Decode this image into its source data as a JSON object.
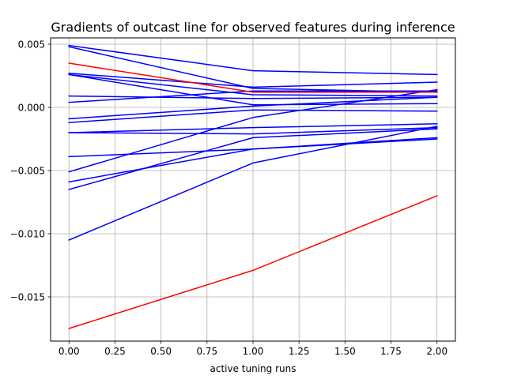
{
  "chart_data": {
    "type": "line",
    "title": "Gradients of outcast line for observed features during inference",
    "xlabel": "active tuning runs",
    "ylabel": "",
    "xlim": [
      -0.1,
      2.1
    ],
    "ylim": [
      -0.0185,
      0.0055
    ],
    "x": [
      0,
      1,
      2
    ],
    "xticks": [
      0.0,
      0.25,
      0.5,
      0.75,
      1.0,
      1.25,
      1.5,
      1.75,
      2.0
    ],
    "xtick_labels": [
      "0.00",
      "0.25",
      "0.50",
      "0.75",
      "1.00",
      "1.25",
      "1.50",
      "1.75",
      "2.00"
    ],
    "yticks": [
      0.005,
      0.0,
      -0.005,
      -0.01,
      -0.015
    ],
    "ytick_labels": [
      "0.005",
      "0.000",
      "−0.005",
      "−0.010",
      "−0.015"
    ],
    "grid": true,
    "legend": "none",
    "colors": {
      "blue": "#0000ff",
      "red": "#ff0000"
    },
    "series": [
      {
        "color": "#0000ff",
        "values": [
          0.0049,
          0.0029,
          0.0026
        ]
      },
      {
        "color": "#0000ff",
        "values": [
          0.0048,
          0.0015,
          0.0012
        ]
      },
      {
        "color": "#0000ff",
        "values": [
          0.0027,
          0.0016,
          0.002
        ]
      },
      {
        "color": "#0000ff",
        "values": [
          0.0026,
          0.001,
          0.0009
        ]
      },
      {
        "color": "#0000ff",
        "values": [
          0.0026,
          0.0002,
          0.0003
        ]
      },
      {
        "color": "#0000ff",
        "values": [
          0.0009,
          0.0007,
          0.0008
        ]
      },
      {
        "color": "#0000ff",
        "values": [
          0.0004,
          0.0013,
          0.0013
        ]
      },
      {
        "color": "#0000ff",
        "values": [
          -0.0009,
          0.0001,
          0.0008
        ]
      },
      {
        "color": "#0000ff",
        "values": [
          -0.0012,
          -0.0002,
          -0.0003
        ]
      },
      {
        "color": "#0000ff",
        "values": [
          -0.002,
          -0.0016,
          -0.0013
        ]
      },
      {
        "color": "#0000ff",
        "values": [
          -0.002,
          -0.0021,
          -0.0016
        ]
      },
      {
        "color": "#0000ff",
        "values": [
          -0.0039,
          -0.0033,
          -0.0025
        ]
      },
      {
        "color": "#0000ff",
        "values": [
          -0.0051,
          -0.0008,
          0.0014
        ]
      },
      {
        "color": "#0000ff",
        "values": [
          -0.0059,
          -0.0033,
          -0.0024
        ]
      },
      {
        "color": "#0000ff",
        "values": [
          -0.0065,
          -0.0024,
          -0.0017
        ]
      },
      {
        "color": "#0000ff",
        "values": [
          -0.0105,
          -0.0044,
          -0.0015
        ]
      },
      {
        "color": "#ff0000",
        "values": [
          0.0035,
          0.0012,
          0.0012
        ]
      },
      {
        "color": "#ff0000",
        "values": [
          -0.0175,
          -0.0129,
          -0.007
        ]
      }
    ]
  }
}
